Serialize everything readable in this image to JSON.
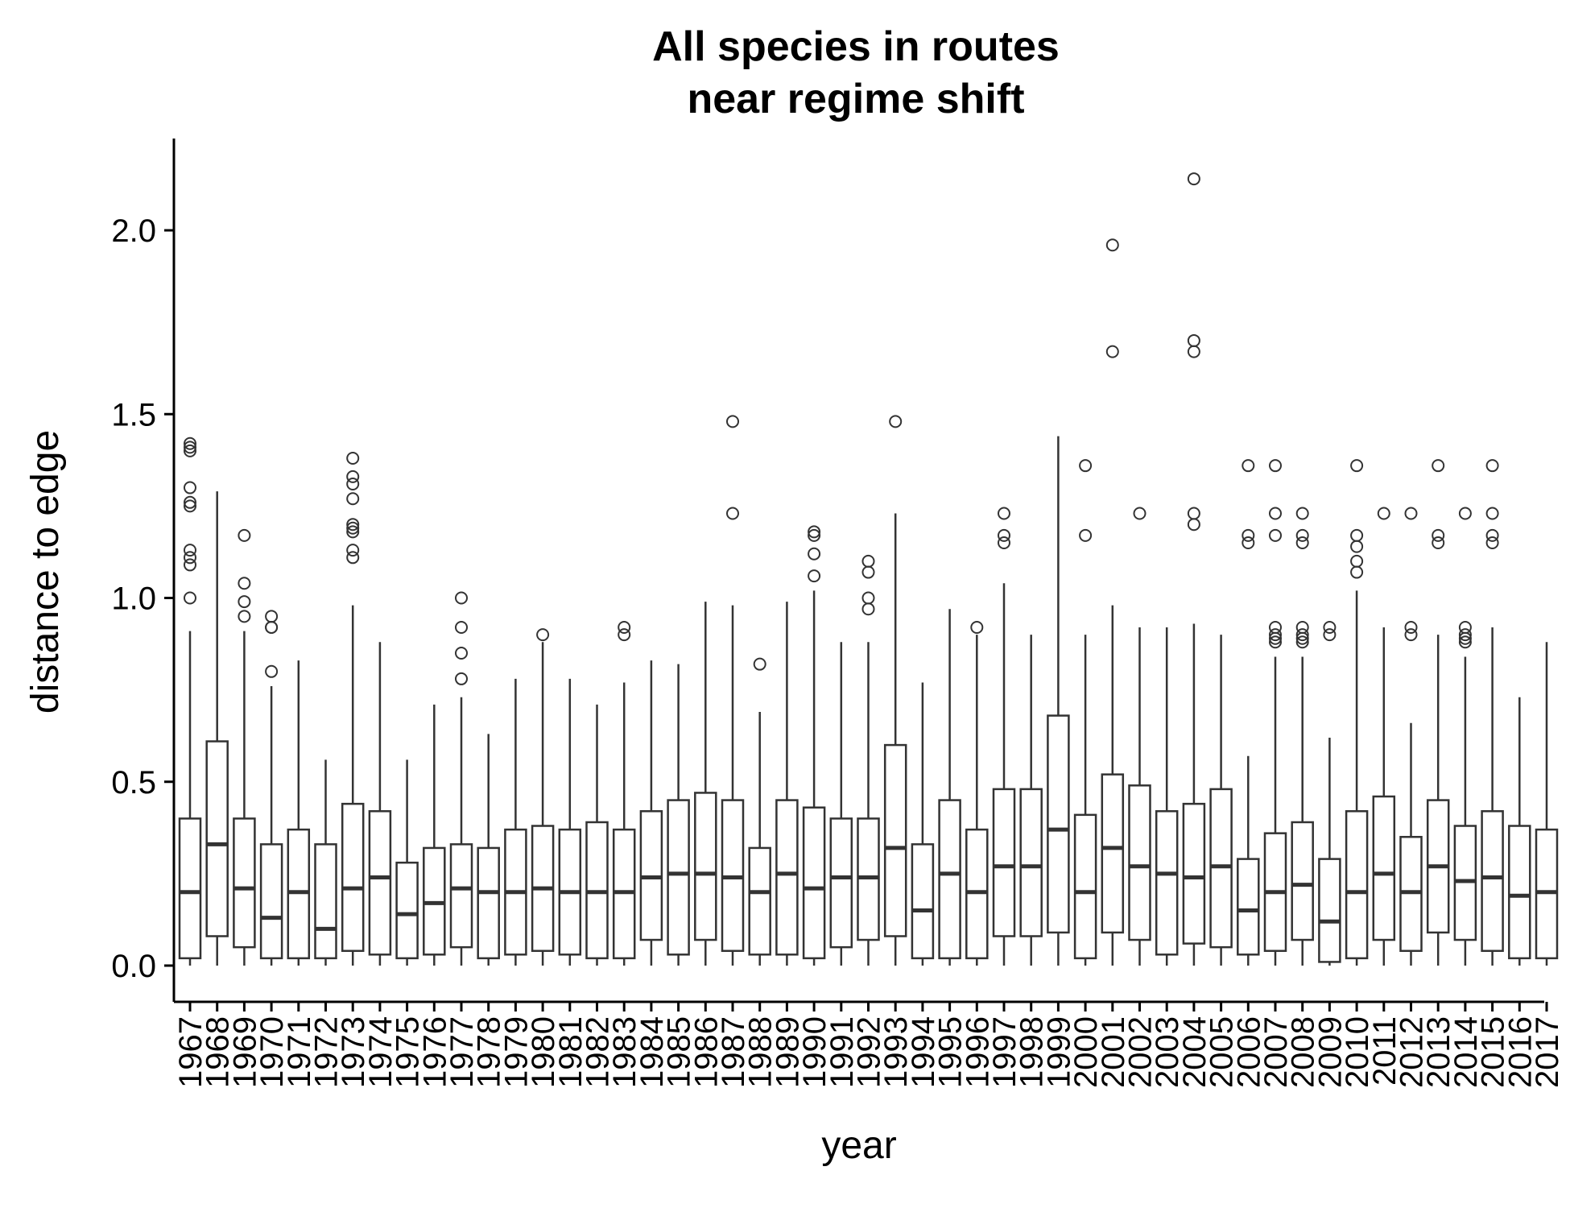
{
  "chart_data": {
    "type": "boxplot",
    "title": [
      "All species in routes",
      "near regime shift"
    ],
    "xlabel": "year",
    "ylabel": "distance to edge",
    "ylim": [
      -0.1,
      2.25
    ],
    "yticks": [
      0.0,
      0.5,
      1.0,
      1.5,
      2.0
    ],
    "ytick_labels": [
      "0.0",
      "0.5",
      "1.0",
      "1.5",
      "2.0"
    ],
    "grid": false,
    "legend": "none",
    "colors": {
      "box_fill": "#ffffff",
      "box_stroke": "#333333",
      "axis": "#000000"
    },
    "categories": [
      "1967",
      "1968",
      "1969",
      "1970",
      "1971",
      "1972",
      "1973",
      "1974",
      "1975",
      "1976",
      "1977",
      "1978",
      "1979",
      "1980",
      "1981",
      "1982",
      "1983",
      "1984",
      "1985",
      "1986",
      "1987",
      "1988",
      "1989",
      "1990",
      "1991",
      "1992",
      "1993",
      "1994",
      "1995",
      "1996",
      "1997",
      "1998",
      "1999",
      "2000",
      "2001",
      "2002",
      "2003",
      "2004",
      "2005",
      "2006",
      "2007",
      "2008",
      "2009",
      "2010",
      "2011",
      "2012",
      "2013",
      "2014",
      "2015",
      "2016",
      "2017"
    ],
    "boxes": [
      {
        "min": 0.0,
        "q1": 0.02,
        "median": 0.2,
        "q3": 0.4,
        "max": 0.91,
        "outliers": [
          1.0,
          1.09,
          1.11,
          1.13,
          1.25,
          1.26,
          1.3,
          1.4,
          1.41,
          1.42
        ]
      },
      {
        "min": 0.0,
        "q1": 0.08,
        "median": 0.33,
        "q3": 0.61,
        "max": 1.29,
        "outliers": []
      },
      {
        "min": 0.0,
        "q1": 0.05,
        "median": 0.21,
        "q3": 0.4,
        "max": 0.91,
        "outliers": [
          0.95,
          0.99,
          1.04,
          1.17
        ]
      },
      {
        "min": 0.0,
        "q1": 0.02,
        "median": 0.13,
        "q3": 0.33,
        "max": 0.76,
        "outliers": [
          0.8,
          0.92,
          0.92,
          0.95
        ]
      },
      {
        "min": 0.0,
        "q1": 0.02,
        "median": 0.2,
        "q3": 0.37,
        "max": 0.83,
        "outliers": []
      },
      {
        "min": 0.0,
        "q1": 0.02,
        "median": 0.1,
        "q3": 0.33,
        "max": 0.56,
        "outliers": []
      },
      {
        "min": 0.0,
        "q1": 0.04,
        "median": 0.21,
        "q3": 0.44,
        "max": 0.98,
        "outliers": [
          1.11,
          1.13,
          1.18,
          1.19,
          1.2,
          1.27,
          1.31,
          1.33,
          1.38
        ]
      },
      {
        "min": 0.0,
        "q1": 0.03,
        "median": 0.24,
        "q3": 0.42,
        "max": 0.88,
        "outliers": []
      },
      {
        "min": 0.0,
        "q1": 0.02,
        "median": 0.14,
        "q3": 0.28,
        "max": 0.56,
        "outliers": []
      },
      {
        "min": 0.0,
        "q1": 0.03,
        "median": 0.17,
        "q3": 0.32,
        "max": 0.71,
        "outliers": []
      },
      {
        "min": 0.0,
        "q1": 0.05,
        "median": 0.21,
        "q3": 0.33,
        "max": 0.73,
        "outliers": [
          0.78,
          0.85,
          0.92,
          1.0
        ]
      },
      {
        "min": 0.0,
        "q1": 0.02,
        "median": 0.2,
        "q3": 0.32,
        "max": 0.63,
        "outliers": []
      },
      {
        "min": 0.0,
        "q1": 0.03,
        "median": 0.2,
        "q3": 0.37,
        "max": 0.78,
        "outliers": []
      },
      {
        "min": 0.0,
        "q1": 0.04,
        "median": 0.21,
        "q3": 0.38,
        "max": 0.88,
        "outliers": [
          0.9
        ]
      },
      {
        "min": 0.0,
        "q1": 0.03,
        "median": 0.2,
        "q3": 0.37,
        "max": 0.78,
        "outliers": []
      },
      {
        "min": 0.0,
        "q1": 0.02,
        "median": 0.2,
        "q3": 0.39,
        "max": 0.71,
        "outliers": []
      },
      {
        "min": 0.0,
        "q1": 0.02,
        "median": 0.2,
        "q3": 0.37,
        "max": 0.77,
        "outliers": [
          0.9,
          0.92
        ]
      },
      {
        "min": 0.0,
        "q1": 0.07,
        "median": 0.24,
        "q3": 0.42,
        "max": 0.83,
        "outliers": []
      },
      {
        "min": 0.0,
        "q1": 0.03,
        "median": 0.25,
        "q3": 0.45,
        "max": 0.82,
        "outliers": []
      },
      {
        "min": 0.0,
        "q1": 0.07,
        "median": 0.25,
        "q3": 0.47,
        "max": 0.99,
        "outliers": []
      },
      {
        "min": 0.0,
        "q1": 0.04,
        "median": 0.24,
        "q3": 0.45,
        "max": 0.98,
        "outliers": [
          1.23,
          1.48
        ]
      },
      {
        "min": 0.0,
        "q1": 0.03,
        "median": 0.2,
        "q3": 0.32,
        "max": 0.69,
        "outliers": [
          0.82
        ]
      },
      {
        "min": 0.0,
        "q1": 0.03,
        "median": 0.25,
        "q3": 0.45,
        "max": 0.99,
        "outliers": []
      },
      {
        "min": 0.0,
        "q1": 0.02,
        "median": 0.21,
        "q3": 0.43,
        "max": 1.02,
        "outliers": [
          1.06,
          1.12,
          1.17,
          1.18
        ]
      },
      {
        "min": 0.0,
        "q1": 0.05,
        "median": 0.24,
        "q3": 0.4,
        "max": 0.88,
        "outliers": []
      },
      {
        "min": 0.0,
        "q1": 0.07,
        "median": 0.24,
        "q3": 0.4,
        "max": 0.88,
        "outliers": [
          0.97,
          1.0,
          1.07,
          1.1
        ]
      },
      {
        "min": 0.0,
        "q1": 0.08,
        "median": 0.32,
        "q3": 0.6,
        "max": 1.23,
        "outliers": [
          1.48
        ]
      },
      {
        "min": 0.0,
        "q1": 0.02,
        "median": 0.15,
        "q3": 0.33,
        "max": 0.77,
        "outliers": []
      },
      {
        "min": 0.0,
        "q1": 0.02,
        "median": 0.25,
        "q3": 0.45,
        "max": 0.97,
        "outliers": []
      },
      {
        "min": 0.0,
        "q1": 0.02,
        "median": 0.2,
        "q3": 0.37,
        "max": 0.9,
        "outliers": [
          0.92
        ]
      },
      {
        "min": 0.0,
        "q1": 0.08,
        "median": 0.27,
        "q3": 0.48,
        "max": 1.04,
        "outliers": [
          1.15,
          1.17,
          1.23
        ]
      },
      {
        "min": 0.0,
        "q1": 0.08,
        "median": 0.27,
        "q3": 0.48,
        "max": 0.9,
        "outliers": []
      },
      {
        "min": 0.0,
        "q1": 0.09,
        "median": 0.37,
        "q3": 0.68,
        "max": 1.44,
        "outliers": []
      },
      {
        "min": 0.0,
        "q1": 0.02,
        "median": 0.2,
        "q3": 0.41,
        "max": 0.9,
        "outliers": [
          1.17,
          1.36
        ]
      },
      {
        "min": 0.0,
        "q1": 0.09,
        "median": 0.32,
        "q3": 0.52,
        "max": 0.98,
        "outliers": [
          1.67,
          1.96
        ]
      },
      {
        "min": 0.0,
        "q1": 0.07,
        "median": 0.27,
        "q3": 0.49,
        "max": 0.92,
        "outliers": [
          1.23
        ]
      },
      {
        "min": 0.0,
        "q1": 0.03,
        "median": 0.25,
        "q3": 0.42,
        "max": 0.92,
        "outliers": []
      },
      {
        "min": 0.0,
        "q1": 0.06,
        "median": 0.24,
        "q3": 0.44,
        "max": 0.93,
        "outliers": [
          1.2,
          1.23,
          1.67,
          1.7,
          2.14
        ]
      },
      {
        "min": 0.0,
        "q1": 0.05,
        "median": 0.27,
        "q3": 0.48,
        "max": 0.9,
        "outliers": []
      },
      {
        "min": 0.0,
        "q1": 0.03,
        "median": 0.15,
        "q3": 0.29,
        "max": 0.57,
        "outliers": [
          1.15,
          1.17,
          1.36
        ]
      },
      {
        "min": 0.0,
        "q1": 0.04,
        "median": 0.2,
        "q3": 0.36,
        "max": 0.84,
        "outliers": [
          0.88,
          0.89,
          0.9,
          0.92,
          1.17,
          1.23,
          1.36
        ]
      },
      {
        "min": 0.0,
        "q1": 0.07,
        "median": 0.22,
        "q3": 0.39,
        "max": 0.84,
        "outliers": [
          0.88,
          0.89,
          0.9,
          0.92,
          1.15,
          1.17,
          1.23
        ]
      },
      {
        "min": 0.0,
        "q1": 0.01,
        "median": 0.12,
        "q3": 0.29,
        "max": 0.62,
        "outliers": [
          0.9,
          0.92
        ]
      },
      {
        "min": 0.0,
        "q1": 0.02,
        "median": 0.2,
        "q3": 0.42,
        "max": 1.02,
        "outliers": [
          1.07,
          1.1,
          1.14,
          1.17,
          1.36
        ]
      },
      {
        "min": 0.0,
        "q1": 0.07,
        "median": 0.25,
        "q3": 0.46,
        "max": 0.92,
        "outliers": [
          1.23
        ]
      },
      {
        "min": 0.0,
        "q1": 0.04,
        "median": 0.2,
        "q3": 0.35,
        "max": 0.66,
        "outliers": [
          0.9,
          0.92,
          1.23
        ]
      },
      {
        "min": 0.0,
        "q1": 0.09,
        "median": 0.27,
        "q3": 0.45,
        "max": 0.9,
        "outliers": [
          1.15,
          1.17,
          1.36
        ]
      },
      {
        "min": 0.0,
        "q1": 0.07,
        "median": 0.23,
        "q3": 0.38,
        "max": 0.84,
        "outliers": [
          0.88,
          0.89,
          0.9,
          0.92,
          1.23
        ]
      },
      {
        "min": 0.0,
        "q1": 0.04,
        "median": 0.24,
        "q3": 0.42,
        "max": 0.92,
        "outliers": [
          1.15,
          1.17,
          1.23,
          1.36
        ]
      },
      {
        "min": 0.0,
        "q1": 0.02,
        "median": 0.19,
        "q3": 0.38,
        "max": 0.73,
        "outliers": []
      },
      {
        "min": 0.0,
        "q1": 0.02,
        "median": 0.2,
        "q3": 0.37,
        "max": 0.88,
        "outliers": []
      }
    ]
  }
}
